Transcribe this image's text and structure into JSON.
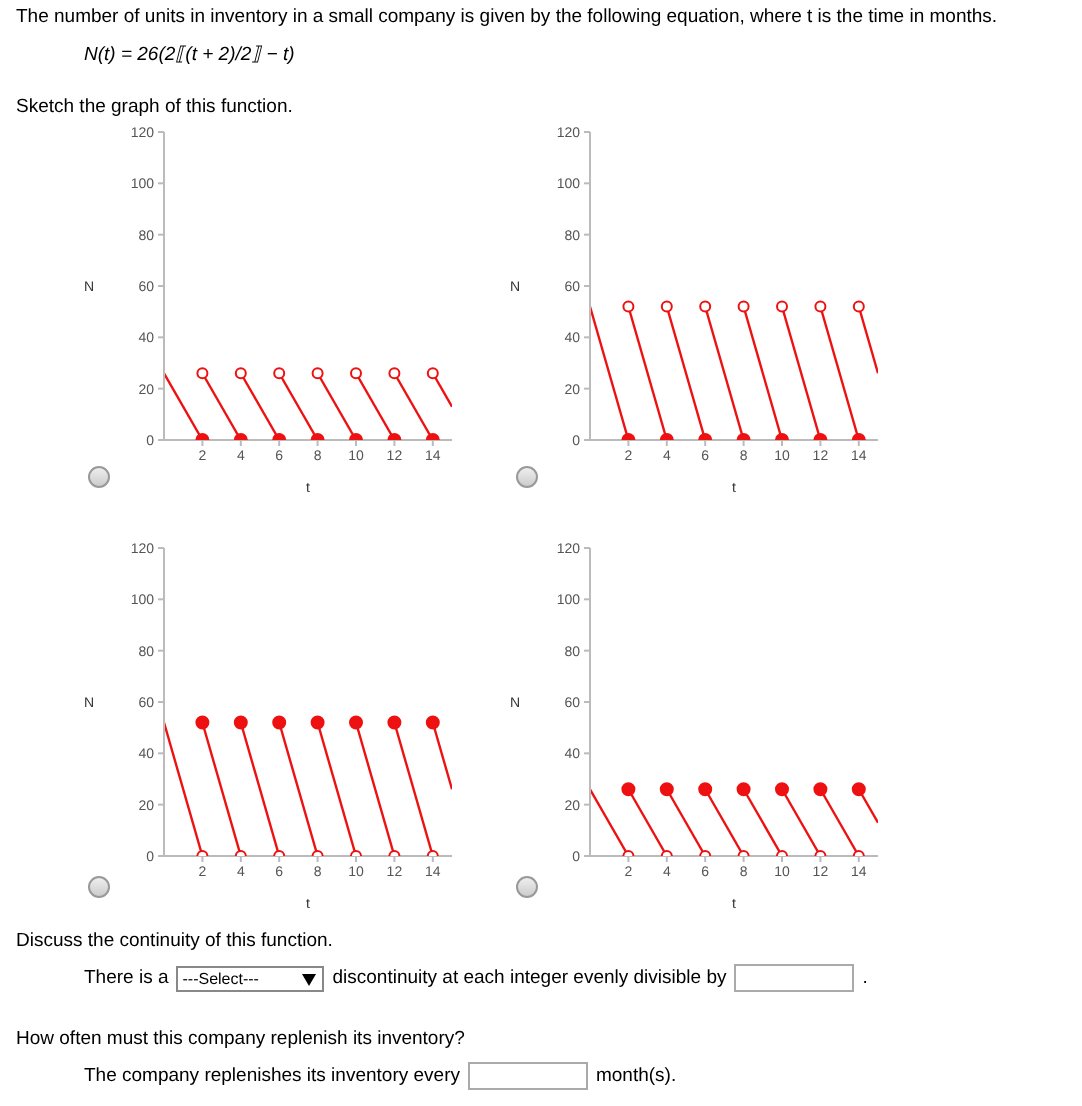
{
  "chart_data": [
    {
      "type": "line",
      "annotations": [
        "The number of units in inventory in a small company is given by the following equation, where t is the time in months.",
        "N(t) = 26(2⟦(t + 2)/2⟧ − t)",
        "Sketch the graph of this function."
      ],
      "xlabel": "t",
      "ylabel": "N",
      "xlim": [
        0,
        15
      ],
      "xticks": [
        2,
        4,
        6,
        8,
        10,
        12,
        14
      ],
      "ylim": [
        0,
        120
      ],
      "yticks": [
        0,
        20,
        40,
        60,
        80,
        100,
        120
      ],
      "grid": false,
      "legend": false,
      "series": [
        {
          "type": "line",
          "color": "#ee1111",
          "x": [
            0,
            2
          ],
          "values": [
            26,
            0
          ]
        },
        {
          "type": "line",
          "color": "#ee1111",
          "x": [
            2,
            4
          ],
          "values": [
            26,
            0
          ]
        },
        {
          "type": "line",
          "color": "#ee1111",
          "x": [
            4,
            6
          ],
          "values": [
            26,
            0
          ]
        },
        {
          "type": "line",
          "color": "#ee1111",
          "x": [
            6,
            8
          ],
          "values": [
            26,
            0
          ]
        },
        {
          "type": "line",
          "color": "#ee1111",
          "x": [
            8,
            10
          ],
          "values": [
            26,
            0
          ]
        },
        {
          "type": "line",
          "color": "#ee1111",
          "x": [
            10,
            12
          ],
          "values": [
            26,
            0
          ]
        },
        {
          "type": "line",
          "color": "#ee1111",
          "x": [
            12,
            14
          ],
          "values": [
            26,
            0
          ]
        },
        {
          "type": "line",
          "color": "#ee1111",
          "x": [
            14,
            15
          ],
          "values": [
            26,
            13
          ]
        },
        {
          "type": "scatter",
          "color": "#ee1111",
          "marker": "circle",
          "x": [
            2,
            4,
            6,
            8,
            10,
            12,
            14
          ],
          "values": [
            0,
            0,
            0,
            0,
            0,
            0,
            0
          ]
        },
        {
          "type": "scatter",
          "color": "#ee1111",
          "marker": "circle-open",
          "x": [
            2,
            4,
            6,
            8,
            10,
            12,
            14
          ],
          "values": [
            26,
            26,
            26,
            26,
            26,
            26,
            26
          ]
        }
      ]
    },
    {
      "type": "line",
      "xlabel": "t",
      "ylabel": "N",
      "xlim": [
        0,
        15
      ],
      "xticks": [
        2,
        4,
        6,
        8,
        10,
        12,
        14
      ],
      "ylim": [
        0,
        120
      ],
      "yticks": [
        0,
        20,
        40,
        60,
        80,
        100,
        120
      ],
      "grid": false,
      "legend": false,
      "series": [
        {
          "type": "line",
          "color": "#ee1111",
          "x": [
            0,
            2
          ],
          "values": [
            52,
            0
          ]
        },
        {
          "type": "line",
          "color": "#ee1111",
          "x": [
            2,
            4
          ],
          "values": [
            52,
            0
          ]
        },
        {
          "type": "line",
          "color": "#ee1111",
          "x": [
            4,
            6
          ],
          "values": [
            52,
            0
          ]
        },
        {
          "type": "line",
          "color": "#ee1111",
          "x": [
            6,
            8
          ],
          "values": [
            52,
            0
          ]
        },
        {
          "type": "line",
          "color": "#ee1111",
          "x": [
            8,
            10
          ],
          "values": [
            52,
            0
          ]
        },
        {
          "type": "line",
          "color": "#ee1111",
          "x": [
            10,
            12
          ],
          "values": [
            52,
            0
          ]
        },
        {
          "type": "line",
          "color": "#ee1111",
          "x": [
            12,
            14
          ],
          "values": [
            52,
            0
          ]
        },
        {
          "type": "line",
          "color": "#ee1111",
          "x": [
            14,
            15
          ],
          "values": [
            52,
            26
          ]
        },
        {
          "type": "scatter",
          "color": "#ee1111",
          "marker": "circle",
          "x": [
            2,
            4,
            6,
            8,
            10,
            12,
            14
          ],
          "values": [
            0,
            0,
            0,
            0,
            0,
            0,
            0
          ]
        },
        {
          "type": "scatter",
          "color": "#ee1111",
          "marker": "circle-open",
          "x": [
            2,
            4,
            6,
            8,
            10,
            12,
            14
          ],
          "values": [
            52,
            52,
            52,
            52,
            52,
            52,
            52
          ]
        }
      ]
    },
    {
      "type": "line",
      "xlabel": "t",
      "ylabel": "N",
      "xlim": [
        0,
        15
      ],
      "xticks": [
        2,
        4,
        6,
        8,
        10,
        12,
        14
      ],
      "ylim": [
        0,
        120
      ],
      "yticks": [
        0,
        20,
        40,
        60,
        80,
        100,
        120
      ],
      "grid": false,
      "legend": false,
      "series": [
        {
          "type": "line",
          "color": "#ee1111",
          "x": [
            0,
            2
          ],
          "values": [
            52,
            0
          ]
        },
        {
          "type": "line",
          "color": "#ee1111",
          "x": [
            2,
            4
          ],
          "values": [
            52,
            0
          ]
        },
        {
          "type": "line",
          "color": "#ee1111",
          "x": [
            4,
            6
          ],
          "values": [
            52,
            0
          ]
        },
        {
          "type": "line",
          "color": "#ee1111",
          "x": [
            6,
            8
          ],
          "values": [
            52,
            0
          ]
        },
        {
          "type": "line",
          "color": "#ee1111",
          "x": [
            8,
            10
          ],
          "values": [
            52,
            0
          ]
        },
        {
          "type": "line",
          "color": "#ee1111",
          "x": [
            10,
            12
          ],
          "values": [
            52,
            0
          ]
        },
        {
          "type": "line",
          "color": "#ee1111",
          "x": [
            12,
            14
          ],
          "values": [
            52,
            0
          ]
        },
        {
          "type": "line",
          "color": "#ee1111",
          "x": [
            14,
            15
          ],
          "values": [
            52,
            26
          ]
        },
        {
          "type": "scatter",
          "color": "#ee1111",
          "marker": "circle-open",
          "x": [
            2,
            4,
            6,
            8,
            10,
            12,
            14
          ],
          "values": [
            0,
            0,
            0,
            0,
            0,
            0,
            0
          ]
        },
        {
          "type": "scatter",
          "color": "#ee1111",
          "marker": "circle",
          "x": [
            2,
            4,
            6,
            8,
            10,
            12,
            14
          ],
          "values": [
            52,
            52,
            52,
            52,
            52,
            52,
            52
          ]
        }
      ]
    },
    {
      "type": "line",
      "annotations": [
        "Discuss the continuity of this function.",
        "There is a",
        "---Select---",
        "discontinuity at each integer evenly divisible by",
        ".",
        "How often must this company replenish its inventory?",
        "The company replenishes its inventory every",
        "month(s)."
      ],
      "xlabel": "t",
      "ylabel": "N",
      "xlim": [
        0,
        15
      ],
      "xticks": [
        2,
        4,
        6,
        8,
        10,
        12,
        14
      ],
      "ylim": [
        0,
        120
      ],
      "yticks": [
        0,
        20,
        40,
        60,
        80,
        100,
        120
      ],
      "grid": false,
      "legend": false,
      "series": [
        {
          "type": "line",
          "color": "#ee1111",
          "x": [
            0,
            2
          ],
          "values": [
            26,
            0
          ]
        },
        {
          "type": "line",
          "color": "#ee1111",
          "x": [
            2,
            4
          ],
          "values": [
            26,
            0
          ]
        },
        {
          "type": "line",
          "color": "#ee1111",
          "x": [
            4,
            6
          ],
          "values": [
            26,
            0
          ]
        },
        {
          "type": "line",
          "color": "#ee1111",
          "x": [
            6,
            8
          ],
          "values": [
            26,
            0
          ]
        },
        {
          "type": "line",
          "color": "#ee1111",
          "x": [
            8,
            10
          ],
          "values": [
            26,
            0
          ]
        },
        {
          "type": "line",
          "color": "#ee1111",
          "x": [
            10,
            12
          ],
          "values": [
            26,
            0
          ]
        },
        {
          "type": "line",
          "color": "#ee1111",
          "x": [
            12,
            14
          ],
          "values": [
            26,
            0
          ]
        },
        {
          "type": "line",
          "color": "#ee1111",
          "x": [
            14,
            15
          ],
          "values": [
            26,
            13
          ]
        },
        {
          "type": "scatter",
          "color": "#ee1111",
          "marker": "circle-open",
          "x": [
            2,
            4,
            6,
            8,
            10,
            12,
            14
          ],
          "values": [
            0,
            0,
            0,
            0,
            0,
            0,
            0
          ]
        },
        {
          "type": "scatter",
          "color": "#ee1111",
          "marker": "circle",
          "x": [
            2,
            4,
            6,
            8,
            10,
            12,
            14
          ],
          "values": [
            26,
            26,
            26,
            26,
            26,
            26,
            26
          ]
        }
      ]
    }
  ]
}
